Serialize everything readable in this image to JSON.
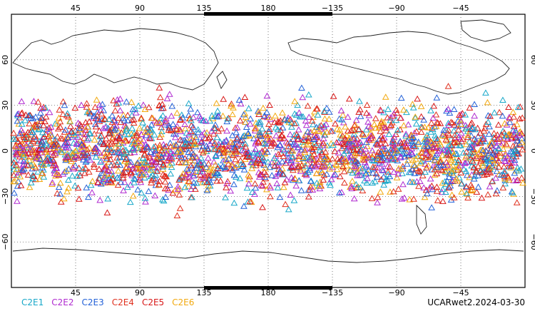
{
  "map": {
    "title": "UCARwet2.2024-03-30",
    "top_lon_ticks": [
      "45",
      "90",
      "135",
      "180",
      "−135",
      "−90",
      "−45"
    ],
    "bottom_lon_ticks": [
      "45",
      "90",
      "135",
      "180",
      "−135",
      "−90",
      "−45"
    ],
    "lat_ticks": [
      "60",
      "30",
      "0",
      "−30",
      "−60"
    ],
    "lon_tick_values": [
      45,
      90,
      135,
      180,
      225,
      270,
      315
    ],
    "lat_tick_values": [
      60,
      30,
      0,
      -30,
      -60
    ],
    "lon_range": [
      0,
      360
    ],
    "lat_range": [
      -90,
      90
    ],
    "grid": "dotted",
    "observation_lat_band": [
      -45,
      45
    ],
    "marker": "open-triangle",
    "colors": {
      "C2E1": "#19a8c9",
      "C2E2": "#b02bd0",
      "C2E3": "#2462d8",
      "C2E4": "#e0301e",
      "C2E5": "#d81818",
      "C2E6": "#f2a90f"
    }
  },
  "legend": [
    {
      "name": "C2E1",
      "color": "#19a8c9"
    },
    {
      "name": "C2E2",
      "color": "#b02bd0"
    },
    {
      "name": "C2E3",
      "color": "#2462d8"
    },
    {
      "name": "C2E4",
      "color": "#e0301e"
    },
    {
      "name": "C2E5",
      "color": "#d81818"
    },
    {
      "name": "C2E6",
      "color": "#f2a90f"
    }
  ]
}
